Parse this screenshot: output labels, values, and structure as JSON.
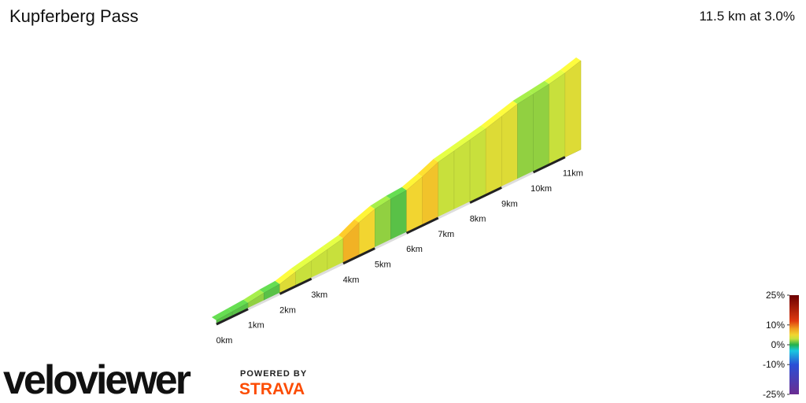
{
  "title": "Kupferberg Pass",
  "summary": "11.5 km at 3.0%",
  "chart_data": {
    "type": "profile3d",
    "bins": [
      0,
      0.5,
      1,
      1.5,
      2,
      2.5,
      3,
      3.5,
      4,
      4.5,
      5,
      5.5,
      6,
      6.5,
      7,
      7.5,
      8,
      8.5,
      9,
      9.5,
      10,
      10.5,
      11,
      11.5
    ],
    "gradients": [
      1,
      1,
      2,
      1,
      4,
      3,
      3,
      3,
      7,
      5,
      2,
      1,
      5,
      6,
      3,
      3,
      3,
      4,
      4,
      2,
      2,
      3,
      4
    ],
    "xlim": [
      0,
      11.5
    ],
    "xticks": [
      {
        "value": 0,
        "label": "0km"
      },
      {
        "value": 1,
        "label": "1km"
      },
      {
        "value": 2,
        "label": "2km"
      },
      {
        "value": 3,
        "label": "3km"
      },
      {
        "value": 4,
        "label": "4km"
      },
      {
        "value": 5,
        "label": "5km"
      },
      {
        "value": 6,
        "label": "6km"
      },
      {
        "value": 7,
        "label": "7km"
      },
      {
        "value": 8,
        "label": "8km"
      },
      {
        "value": 9,
        "label": "9km"
      },
      {
        "value": 10,
        "label": "10km"
      },
      {
        "value": 11,
        "label": "11km"
      }
    ],
    "clim": [
      -25,
      25
    ],
    "cticks": [
      {
        "value": 25,
        "label": "25%"
      },
      {
        "value": 10,
        "label": "10%"
      },
      {
        "value": 0,
        "label": "0%"
      },
      {
        "value": -10,
        "label": "-10%"
      },
      {
        "value": -25,
        "label": "-25%"
      }
    ],
    "colorscale": [
      [
        -25,
        "#6a2c91"
      ],
      [
        -10,
        "#2a4fd6"
      ],
      [
        -3,
        "#19c8e0"
      ],
      [
        0,
        "#22b14c"
      ],
      [
        3,
        "#c8e03c"
      ],
      [
        5,
        "#f2d530"
      ],
      [
        8,
        "#f0a020"
      ],
      [
        12,
        "#e03a10"
      ],
      [
        25,
        "#6b0000"
      ]
    ]
  },
  "branding": {
    "logo": "veloviewer",
    "powered": "POWERED BY",
    "strava": "STRAVA"
  }
}
